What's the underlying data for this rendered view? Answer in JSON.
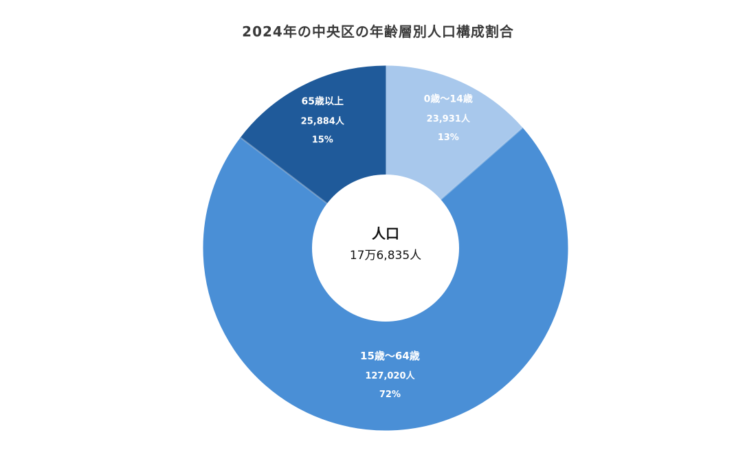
{
  "chart_data": {
    "type": "pie",
    "donut": true,
    "title": "2024年の中央区の年齢層別人口構成割合",
    "center": {
      "title": "人口",
      "value": "17万6,835人"
    },
    "slices": [
      {
        "name": "0歳～14歳",
        "value": 23931,
        "value_label": "23,931人",
        "percent_label": "13%",
        "color": "#a8c8ec"
      },
      {
        "name": "15歳～64歳",
        "value": 127020,
        "value_label": "127,020人",
        "percent_label": "72%",
        "color": "#4a8fd6"
      },
      {
        "name": "65歳以上",
        "value": 25884,
        "value_label": "25,884人",
        "percent_label": "15%",
        "color": "#1f5a9a"
      }
    ]
  }
}
